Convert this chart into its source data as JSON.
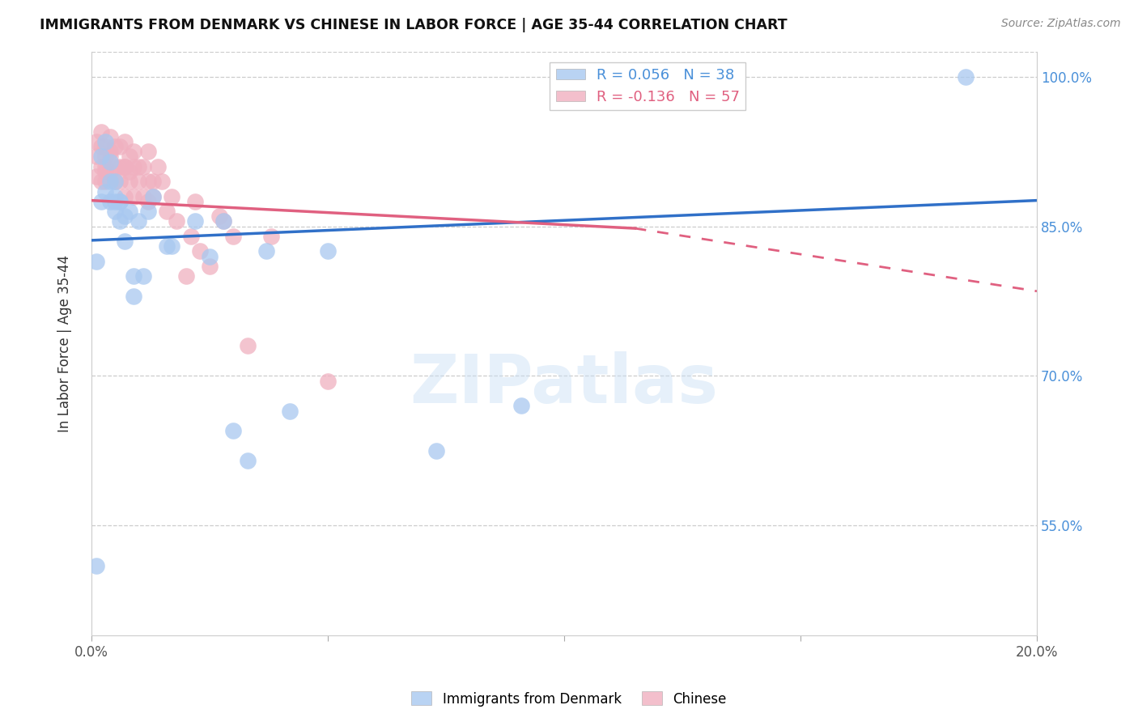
{
  "title": "IMMIGRANTS FROM DENMARK VS CHINESE IN LABOR FORCE | AGE 35-44 CORRELATION CHART",
  "source": "Source: ZipAtlas.com",
  "ylabel": "In Labor Force | Age 35-44",
  "xlim": [
    0.0,
    0.2
  ],
  "ylim": [
    0.44,
    1.025
  ],
  "ytick_labels": [
    "55.0%",
    "70.0%",
    "85.0%",
    "100.0%"
  ],
  "ytick_positions": [
    0.55,
    0.7,
    0.85,
    1.0
  ],
  "xtick_positions": [
    0.0,
    0.05,
    0.1,
    0.15,
    0.2
  ],
  "xtick_labels": [
    "0.0%",
    "",
    "",
    "",
    "20.0%"
  ],
  "denmark_R": 0.056,
  "denmark_N": 38,
  "chinese_R": -0.136,
  "chinese_N": 57,
  "denmark_color": "#a8c8f0",
  "chinese_color": "#f0b0c0",
  "denmark_line_color": "#3070c8",
  "chinese_line_color": "#e06080",
  "background_color": "#ffffff",
  "denmark_x": [
    0.001,
    0.002,
    0.002,
    0.003,
    0.003,
    0.004,
    0.004,
    0.004,
    0.005,
    0.005,
    0.005,
    0.005,
    0.006,
    0.006,
    0.006,
    0.007,
    0.007,
    0.008,
    0.009,
    0.009,
    0.01,
    0.011,
    0.012,
    0.013,
    0.016,
    0.017,
    0.022,
    0.025,
    0.028,
    0.03,
    0.033,
    0.037,
    0.042,
    0.05,
    0.073,
    0.091,
    0.185,
    0.001
  ],
  "denmark_y": [
    0.815,
    0.875,
    0.92,
    0.885,
    0.935,
    0.915,
    0.875,
    0.895,
    0.875,
    0.865,
    0.88,
    0.895,
    0.875,
    0.855,
    0.875,
    0.835,
    0.86,
    0.865,
    0.8,
    0.78,
    0.855,
    0.8,
    0.865,
    0.88,
    0.83,
    0.83,
    0.855,
    0.82,
    0.855,
    0.645,
    0.615,
    0.825,
    0.665,
    0.825,
    0.625,
    0.67,
    1.0,
    0.51
  ],
  "chinese_x": [
    0.001,
    0.001,
    0.001,
    0.002,
    0.002,
    0.002,
    0.002,
    0.003,
    0.003,
    0.003,
    0.003,
    0.003,
    0.004,
    0.004,
    0.004,
    0.004,
    0.005,
    0.005,
    0.005,
    0.006,
    0.006,
    0.006,
    0.007,
    0.007,
    0.007,
    0.007,
    0.008,
    0.008,
    0.008,
    0.009,
    0.009,
    0.009,
    0.01,
    0.01,
    0.011,
    0.011,
    0.012,
    0.012,
    0.012,
    0.013,
    0.013,
    0.014,
    0.015,
    0.016,
    0.017,
    0.018,
    0.02,
    0.021,
    0.022,
    0.023,
    0.025,
    0.027,
    0.028,
    0.03,
    0.033,
    0.038,
    0.05
  ],
  "chinese_y": [
    0.9,
    0.92,
    0.935,
    0.895,
    0.91,
    0.93,
    0.945,
    0.905,
    0.92,
    0.91,
    0.93,
    0.895,
    0.92,
    0.905,
    0.925,
    0.94,
    0.91,
    0.895,
    0.93,
    0.91,
    0.93,
    0.895,
    0.91,
    0.88,
    0.91,
    0.935,
    0.905,
    0.92,
    0.895,
    0.88,
    0.91,
    0.925,
    0.895,
    0.91,
    0.88,
    0.91,
    0.895,
    0.925,
    0.875,
    0.88,
    0.895,
    0.91,
    0.895,
    0.865,
    0.88,
    0.855,
    0.8,
    0.84,
    0.875,
    0.825,
    0.81,
    0.86,
    0.855,
    0.84,
    0.73,
    0.84,
    0.695
  ],
  "denmark_line_x0": 0.0,
  "denmark_line_x1": 0.2,
  "denmark_line_y0": 0.836,
  "denmark_line_y1": 0.876,
  "chinese_line_x0": 0.0,
  "chinese_line_x1_solid": 0.115,
  "chinese_line_x1_dash": 0.2,
  "chinese_line_y0": 0.876,
  "chinese_line_y1_solid": 0.848,
  "chinese_line_y1_dash": 0.785
}
